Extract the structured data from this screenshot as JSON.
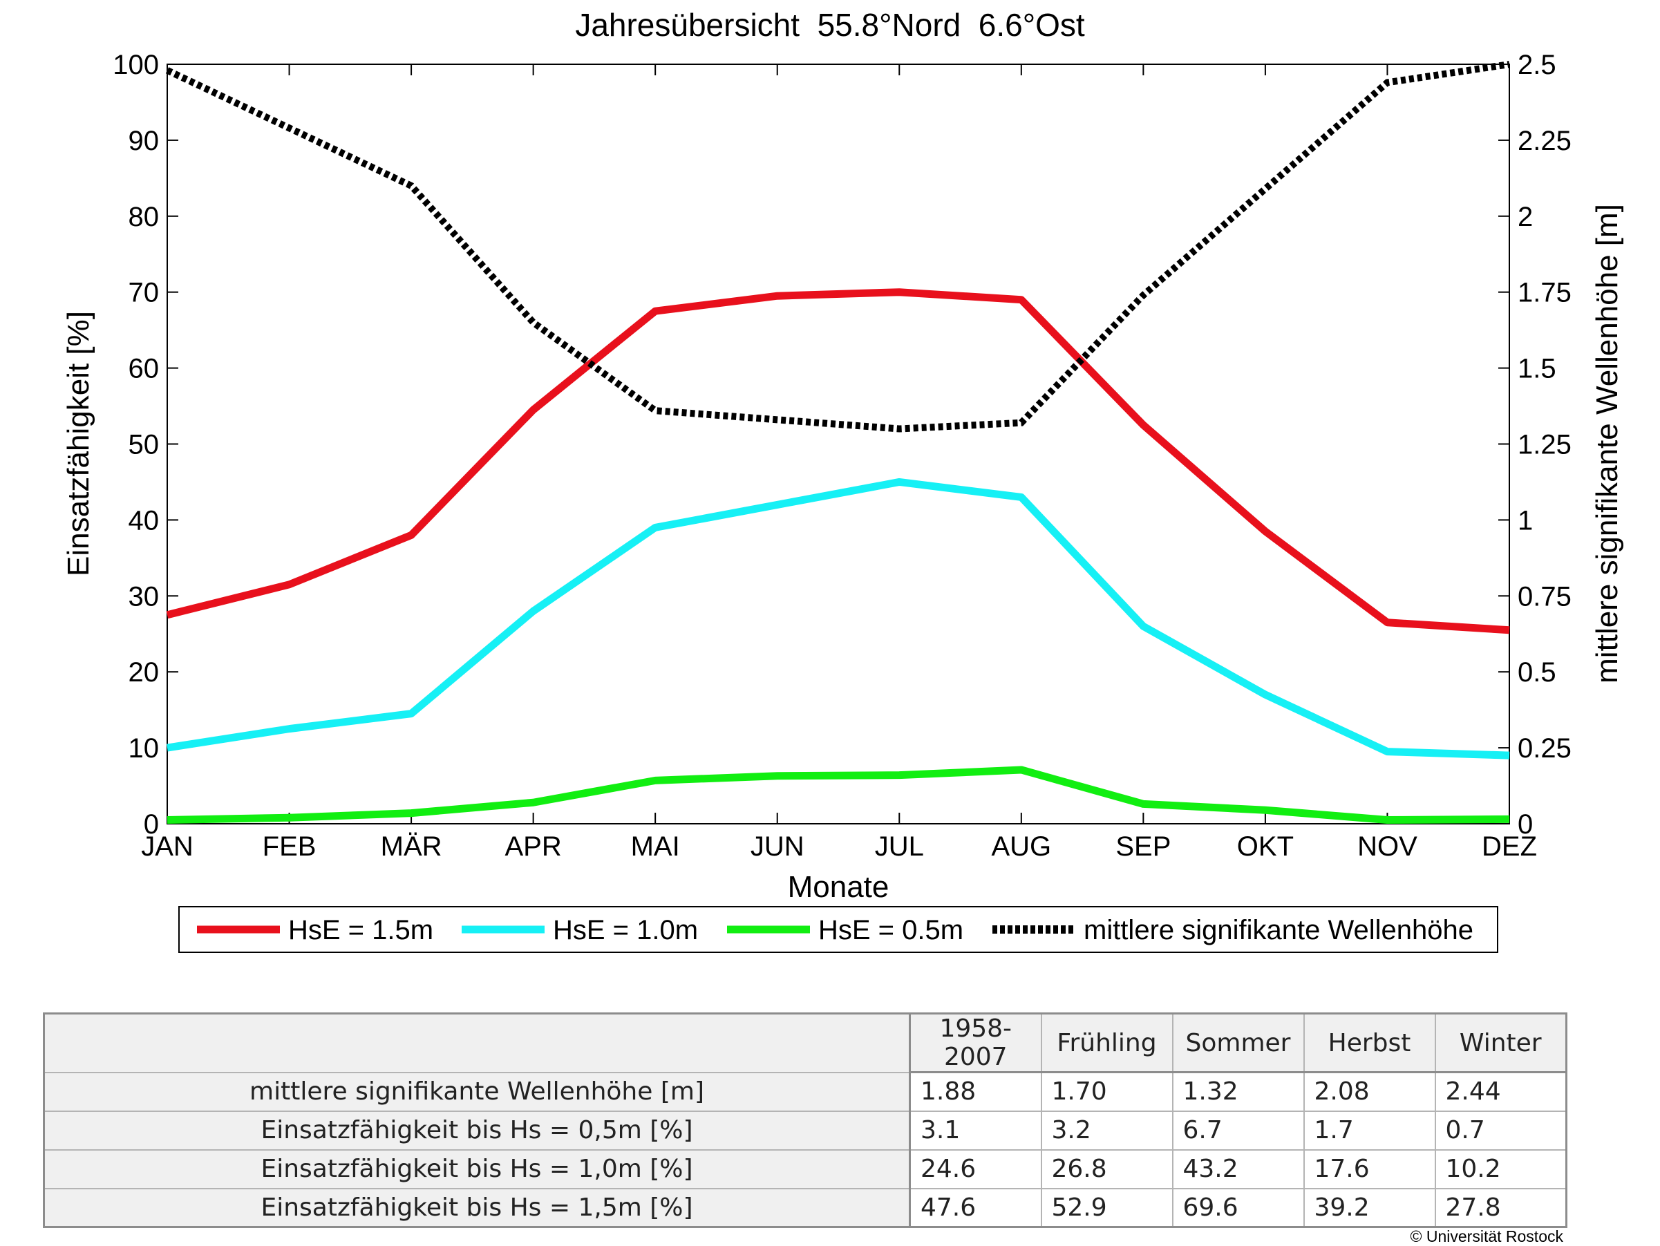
{
  "chart_data": {
    "type": "line",
    "title": "Jahresübersicht  55.8°Nord  6.6°Ost",
    "xlabel": "Monate",
    "ylabel": "Einsatzfähigkeit [%]",
    "y2label": "mittlere signifikante Wellenhöhe [m]",
    "categories": [
      "JAN",
      "FEB",
      "MÄR",
      "APR",
      "MAI",
      "JUN",
      "JUL",
      "AUG",
      "SEP",
      "OKT",
      "NOV",
      "DEZ"
    ],
    "ylim": [
      0,
      100
    ],
    "y2lim": [
      0,
      2.5
    ],
    "yticks": [
      "0",
      "10",
      "20",
      "30",
      "40",
      "50",
      "60",
      "70",
      "80",
      "90",
      "100"
    ],
    "y2ticks": [
      "0",
      "0.25",
      "0.5",
      "0.75",
      "1",
      "1.25",
      "1.5",
      "1.75",
      "2",
      "2.25",
      "2.5"
    ],
    "grid": false,
    "legend_position": "bottom",
    "series": [
      {
        "name": "HsE = 1.5m",
        "axis": "left",
        "color": "#e8101c",
        "style": "solid",
        "values": [
          27.5,
          31.5,
          38,
          54.5,
          67.5,
          69.5,
          70,
          69,
          52.5,
          38.5,
          26.5,
          25.5
        ]
      },
      {
        "name": "HsE = 1.0m",
        "axis": "left",
        "color": "#16f0f5",
        "style": "solid",
        "values": [
          10,
          12.5,
          14.5,
          28,
          39,
          42,
          45,
          43,
          26,
          17,
          9.5,
          9
        ]
      },
      {
        "name": "HsE = 0.5m",
        "axis": "left",
        "color": "#11ee11",
        "style": "solid",
        "values": [
          0.5,
          0.8,
          1.4,
          2.8,
          5.7,
          6.3,
          6.4,
          7.1,
          2.6,
          1.8,
          0.5,
          0.6
        ]
      },
      {
        "name": "mittlere signifikante Wellenhöhe",
        "axis": "right",
        "color": "#000000",
        "style": "dotted",
        "values": [
          2.48,
          2.29,
          2.1,
          1.65,
          1.36,
          1.33,
          1.3,
          1.32,
          1.74,
          2.09,
          2.44,
          2.5
        ]
      }
    ]
  },
  "table": {
    "columns": [
      "1958-2007",
      "Frühling",
      "Sommer",
      "Herbst",
      "Winter"
    ],
    "rows": [
      {
        "label": "mittlere signifikante Wellenhöhe [m]",
        "values": [
          "1.88",
          "1.70",
          "1.32",
          "2.08",
          "2.44"
        ]
      },
      {
        "label": "Einsatzfähigkeit bis Hs = 0,5m [%]",
        "values": [
          "3.1",
          "3.2",
          "6.7",
          "1.7",
          "0.7"
        ]
      },
      {
        "label": "Einsatzfähigkeit bis Hs = 1,0m [%]",
        "values": [
          "24.6",
          "26.8",
          "43.2",
          "17.6",
          "10.2"
        ]
      },
      {
        "label": "Einsatzfähigkeit bis Hs = 1,5m [%]",
        "values": [
          "47.6",
          "52.9",
          "69.6",
          "39.2",
          "27.8"
        ]
      }
    ]
  },
  "copyright": "© Universität Rostock"
}
